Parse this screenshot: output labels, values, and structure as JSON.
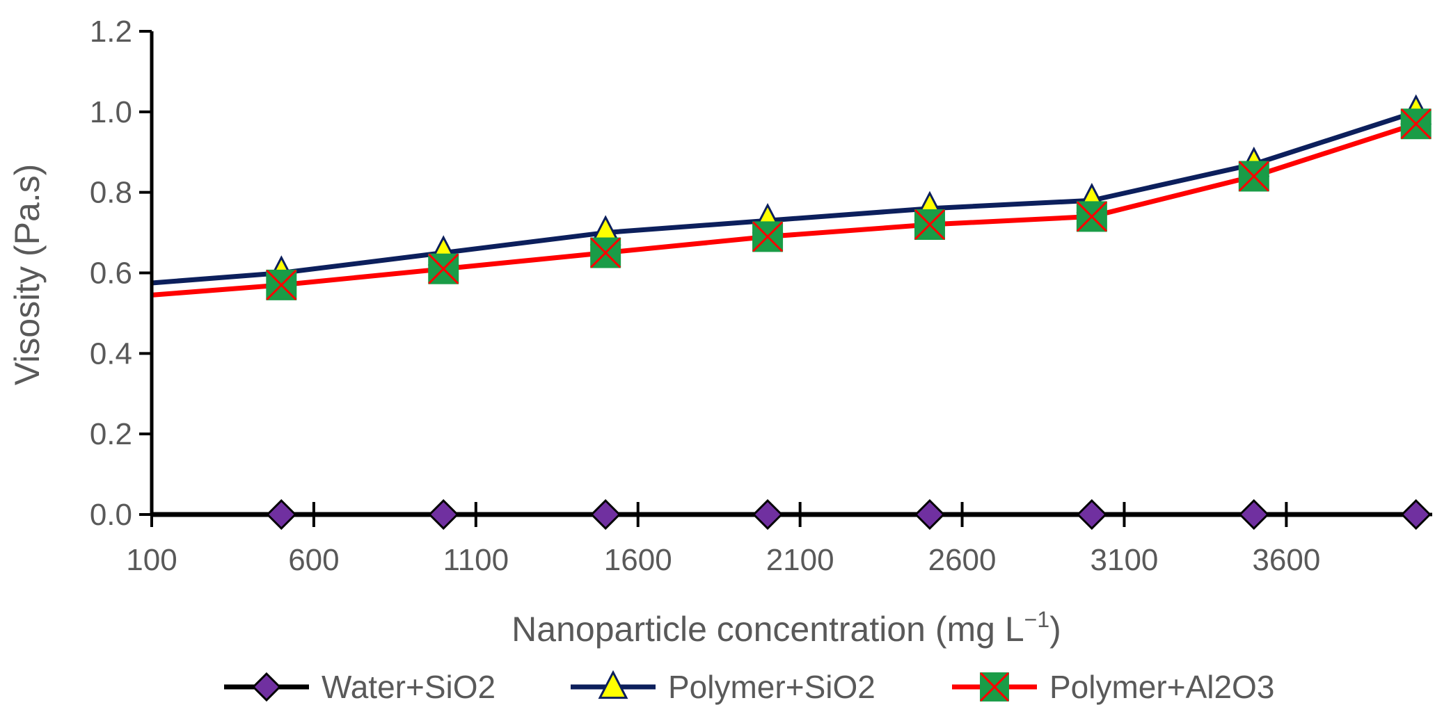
{
  "chart_data": {
    "type": "line",
    "xlabel": "Nanoparticle concentration (mg L",
    "xlabel_sup": "−1",
    "xlabel_close": ")",
    "ylabel": "Visosity (Pa.s)",
    "xlim": [
      100,
      4050
    ],
    "ylim": [
      0,
      1.2
    ],
    "x_ticks": [
      100,
      600,
      1100,
      1600,
      2100,
      2600,
      3100,
      3600
    ],
    "x_tick_labels": [
      "100",
      "600",
      "1100",
      "1600",
      "2100",
      "2600",
      "3100",
      "3600"
    ],
    "y_ticks": [
      0,
      0.2,
      0.4,
      0.6,
      0.8,
      1.0,
      1.2
    ],
    "y_tick_labels": [
      "0.0",
      "0.2",
      "0.4",
      "0.6",
      "0.8",
      "1.0",
      "1.2"
    ],
    "grid": false,
    "legend_position": "bottom",
    "x": [
      500,
      1000,
      1500,
      2000,
      2500,
      3000,
      3500,
      4000
    ],
    "series": [
      {
        "name": "Water+SiO2",
        "values": [
          0,
          0,
          0,
          0,
          0,
          0,
          0,
          0
        ],
        "line_start": 0,
        "line_color": "#000000",
        "marker": "diamond",
        "marker_color": "#7030a0"
      },
      {
        "name": "Polymer+SiO2",
        "values": [
          0.6,
          0.65,
          0.7,
          0.73,
          0.76,
          0.78,
          0.87,
          1.0
        ],
        "line_start": 0.575,
        "line_color": "#0c1f5c",
        "marker": "triangle",
        "marker_color": "#ffff00"
      },
      {
        "name": "Polymer+Al2O3",
        "values": [
          0.57,
          0.61,
          0.65,
          0.69,
          0.72,
          0.74,
          0.84,
          0.97
        ],
        "line_start": 0.545,
        "line_color": "#ff0000",
        "marker": "square-x",
        "marker_color": "#1a9c47"
      }
    ]
  }
}
